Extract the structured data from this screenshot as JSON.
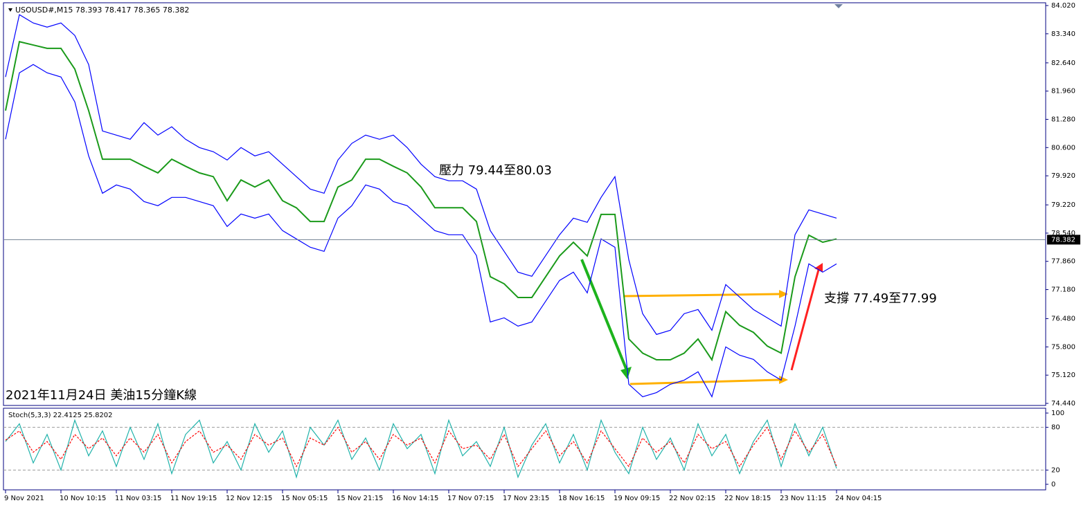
{
  "chart_data": [
    {
      "type": "line",
      "title": "USOUSD#,M15 78.393 78.417 78.365 78.382",
      "annotations": [
        "壓力 79.44至80.03",
        "支撐 77.49至77.99",
        "2021年11月24日 美油15分鐘K線"
      ],
      "categories": [
        "9 Nov 2021",
        null,
        null,
        null,
        "10 Nov 10:15",
        null,
        null,
        null,
        "11 Nov 03:15",
        null,
        null,
        null,
        "11 Nov 19:15",
        null,
        null,
        null,
        "12 Nov 12:15",
        null,
        null,
        null,
        "15 Nov 05:15",
        null,
        null,
        null,
        "15 Nov 21:15",
        null,
        null,
        null,
        "16 Nov 14:15",
        null,
        null,
        null,
        "17 Nov 07:15",
        null,
        null,
        null,
        "17 Nov 23:15",
        null,
        null,
        null,
        "18 Nov 16:15",
        null,
        null,
        null,
        "19 Nov 09:15",
        null,
        null,
        null,
        "22 Nov 02:15",
        null,
        null,
        null,
        "22 Nov 18:15",
        null,
        null,
        null,
        "23 Nov 11:15",
        null,
        null,
        null,
        "24 Nov 04:15"
      ],
      "series": [
        {
          "name": "Close",
          "color": "#1a9a1a",
          "values": [
            81.49,
            83.15,
            83.07,
            82.99,
            82.99,
            82.49,
            81.49,
            80.32,
            80.32,
            80.32,
            80.15,
            79.99,
            80.32,
            80.15,
            79.99,
            79.9,
            79.32,
            79.82,
            79.65,
            79.82,
            79.32,
            79.15,
            78.82,
            78.82,
            79.65,
            79.82,
            80.32,
            80.32,
            80.15,
            79.99,
            79.65,
            79.15,
            79.15,
            79.15,
            78.82,
            77.49,
            77.32,
            76.99,
            76.99,
            77.49,
            77.99,
            78.32,
            77.99,
            78.99,
            78.99,
            75.99,
            75.65,
            75.49,
            75.49,
            75.65,
            75.99,
            75.49,
            76.65,
            76.32,
            76.15,
            75.82,
            75.65,
            77.49,
            78.49,
            78.32,
            78.4
          ]
        },
        {
          "name": "Upper",
          "color": "#0000ff",
          "values": [
            82.3,
            83.8,
            83.6,
            83.5,
            83.6,
            83.3,
            82.6,
            81.0,
            80.9,
            80.8,
            81.2,
            80.9,
            81.1,
            80.8,
            80.6,
            80.5,
            80.3,
            80.6,
            80.4,
            80.5,
            80.2,
            79.9,
            79.6,
            79.5,
            80.3,
            80.7,
            80.9,
            80.8,
            80.9,
            80.6,
            80.2,
            79.9,
            79.8,
            79.8,
            79.6,
            78.6,
            78.1,
            77.6,
            77.5,
            78.0,
            78.5,
            78.9,
            78.8,
            79.4,
            79.9,
            77.9,
            76.6,
            76.1,
            76.2,
            76.6,
            76.7,
            76.2,
            77.3,
            77.0,
            76.7,
            76.5,
            76.3,
            78.5,
            79.1,
            79.0,
            78.9
          ]
        },
        {
          "name": "Lower",
          "color": "#0000ff",
          "values": [
            80.8,
            82.4,
            82.6,
            82.4,
            82.3,
            81.7,
            80.4,
            79.5,
            79.7,
            79.6,
            79.3,
            79.2,
            79.4,
            79.4,
            79.3,
            79.2,
            78.7,
            79.0,
            78.9,
            79.0,
            78.6,
            78.4,
            78.2,
            78.1,
            78.9,
            79.2,
            79.7,
            79.6,
            79.3,
            79.2,
            78.9,
            78.6,
            78.5,
            78.5,
            78.0,
            76.4,
            76.5,
            76.3,
            76.4,
            76.9,
            77.4,
            77.6,
            77.1,
            78.4,
            78.2,
            74.9,
            74.6,
            74.7,
            74.9,
            75.0,
            75.2,
            74.6,
            75.8,
            75.6,
            75.5,
            75.2,
            75.0,
            76.3,
            77.8,
            77.6,
            77.8
          ]
        }
      ],
      "current_price": 78.382,
      "ylim": [
        74.39,
        84.087
      ],
      "yticks": [
        {
          "value": 84.02,
          "label": "84.020"
        },
        {
          "value": 83.34,
          "label": "83.340"
        },
        {
          "value": 82.64,
          "label": "82.640"
        },
        {
          "value": 81.96,
          "label": "81.960"
        },
        {
          "value": 81.28,
          "label": "81.280"
        },
        {
          "value": 80.6,
          "label": "80.600"
        },
        {
          "value": 79.92,
          "label": "79.920"
        },
        {
          "value": 79.22,
          "label": "79.220"
        },
        {
          "value": 78.54,
          "label": "78.540"
        },
        {
          "value": 77.86,
          "label": "77.860"
        },
        {
          "value": 77.18,
          "label": "77.180"
        },
        {
          "value": 76.48,
          "label": "76.480"
        },
        {
          "value": 75.8,
          "label": "75.800"
        },
        {
          "value": 75.12,
          "label": "75.120"
        },
        {
          "value": 74.44,
          "label": "74.440"
        }
      ]
    },
    {
      "type": "line",
      "title": "Stoch(5,3,3) 22.4125 25.8202",
      "series": [
        {
          "name": "%K",
          "color": "#20b2aa",
          "values": [
            60,
            85,
            30,
            70,
            20,
            90,
            40,
            75,
            25,
            80,
            35,
            85,
            15,
            70,
            90,
            30,
            60,
            20,
            85,
            45,
            75,
            10,
            80,
            55,
            90,
            35,
            65,
            20,
            85,
            50,
            70,
            15,
            90,
            40,
            60,
            25,
            80,
            10,
            55,
            85,
            30,
            70,
            20,
            90,
            45,
            15,
            80,
            35,
            65,
            20,
            85,
            40,
            70,
            15,
            60,
            90,
            25,
            85,
            40,
            80,
            22.4
          ]
        },
        {
          "name": "%D",
          "color": "#ff0000",
          "dashed": true,
          "values": [
            62,
            75,
            45,
            60,
            35,
            70,
            50,
            65,
            40,
            65,
            45,
            70,
            30,
            60,
            75,
            45,
            55,
            35,
            70,
            55,
            65,
            25,
            65,
            55,
            80,
            45,
            60,
            35,
            70,
            55,
            65,
            30,
            75,
            50,
            55,
            35,
            70,
            25,
            50,
            75,
            40,
            60,
            30,
            75,
            50,
            25,
            65,
            45,
            60,
            30,
            70,
            50,
            60,
            25,
            55,
            80,
            35,
            75,
            45,
            70,
            25.8
          ]
        }
      ],
      "levels": [
        20,
        80
      ],
      "ylim": [
        -7.8,
        106.8
      ],
      "yticks": [
        100,
        80,
        20,
        0
      ]
    }
  ]
}
